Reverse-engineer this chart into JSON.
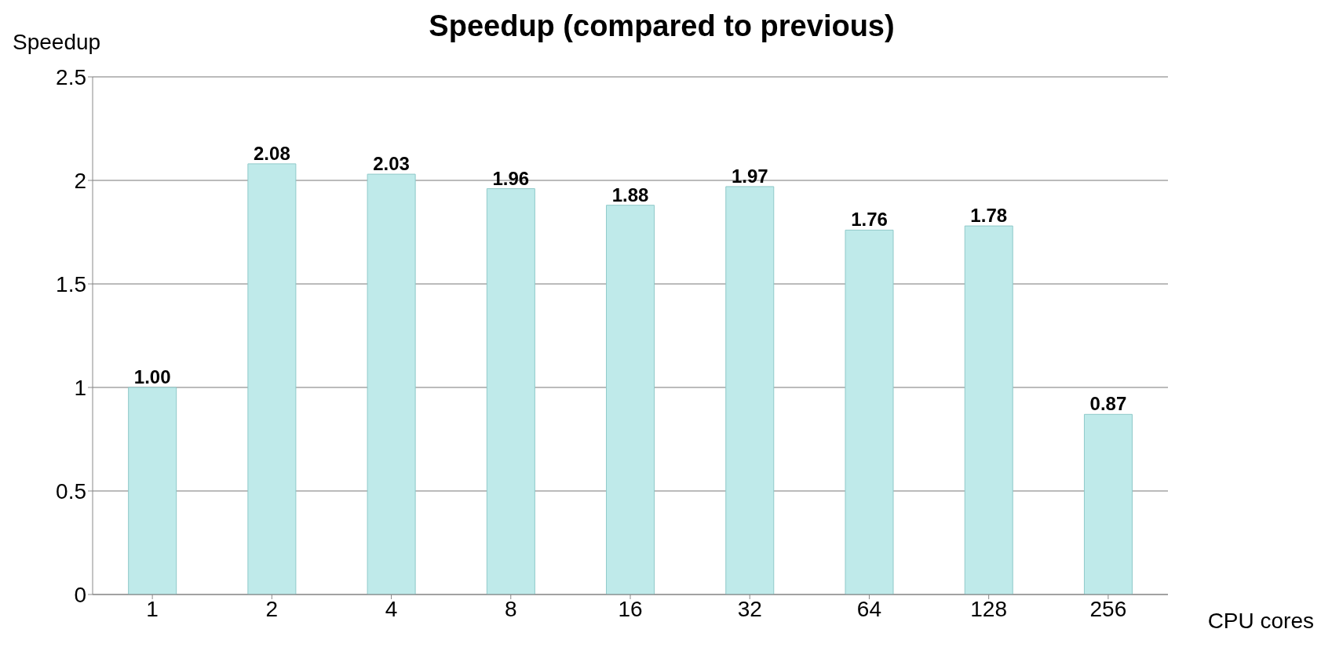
{
  "chart_data": {
    "type": "bar",
    "title": "Speedup (compared to previous)",
    "xlabel": "CPU cores",
    "ylabel": "Speedup",
    "categories": [
      "1",
      "2",
      "4",
      "8",
      "16",
      "32",
      "64",
      "128",
      "256"
    ],
    "values": [
      1.0,
      2.08,
      2.03,
      1.96,
      1.88,
      1.97,
      1.76,
      1.78,
      0.87
    ],
    "value_labels": [
      "1.00",
      "2.08",
      "2.03",
      "1.96",
      "1.88",
      "1.97",
      "1.76",
      "1.78",
      "0.87"
    ],
    "color": "#bfeaea",
    "ylim": [
      0,
      2.5
    ],
    "yticks": [
      0,
      0.5,
      1,
      1.5,
      2,
      2.5
    ],
    "grid": "y"
  }
}
